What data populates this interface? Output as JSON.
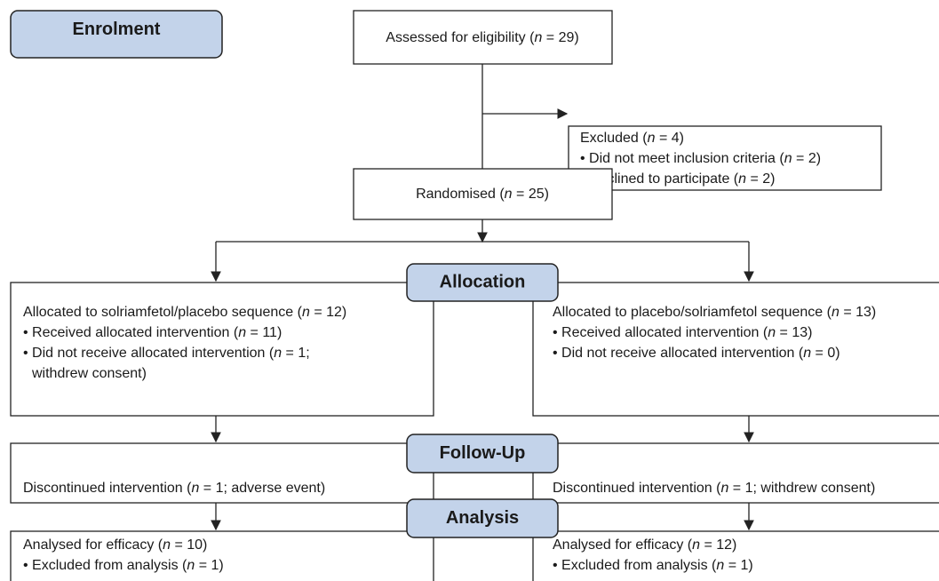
{
  "stages": {
    "enrolment": "Enrolment",
    "allocation": "Allocation",
    "follow_up": "Follow-Up",
    "analysis": "Analysis"
  },
  "boxes": {
    "assessed": {
      "lines": [
        [
          "Assessed for eligibility (",
          "n",
          " = 29)"
        ]
      ]
    },
    "excluded": {
      "lines": [
        [
          "Excluded (",
          "n",
          " = 4)"
        ],
        [
          "• Did not meet inclusion criteria (",
          "n",
          " = 2)"
        ],
        [
          "• Declined to participate (",
          "n",
          " = 2)"
        ]
      ]
    },
    "randomised": {
      "lines": [
        [
          "Randomised (",
          "n",
          " = 25)"
        ]
      ]
    },
    "allocation_left": {
      "lines": [
        [
          "Allocated to solriamfetol/placebo sequence (",
          "n",
          " = 12)"
        ],
        [
          "• Received allocated intervention (",
          "n",
          " = 11)"
        ],
        [
          "• Did not receive allocated intervention (",
          "n",
          " = 1;"
        ],
        [
          "withdrew consent)"
        ]
      ]
    },
    "allocation_right": {
      "lines": [
        [
          "Allocated to placebo/solriamfetol sequence (",
          "n",
          " = 13)"
        ],
        [
          "• Received allocated intervention (",
          "n",
          " = 13)"
        ],
        [
          "• Did not receive allocated intervention (",
          "n",
          " = 0)"
        ]
      ]
    },
    "follow_up_left": {
      "lines": [
        [
          "Discontinued intervention (",
          "n",
          " = 1; adverse event)"
        ]
      ]
    },
    "follow_up_right": {
      "lines": [
        [
          "Discontinued intervention (",
          "n",
          " = 1; withdrew consent)"
        ]
      ]
    },
    "analysis_left": {
      "lines": [
        [
          "Analysed for efficacy (",
          "n",
          " = 10)"
        ],
        [
          "• Excluded from analysis (",
          "n",
          " = 1)"
        ]
      ]
    },
    "analysis_right": {
      "lines": [
        [
          "Analysed for efficacy (",
          "n",
          " = 12)"
        ],
        [
          "• Excluded from analysis (",
          "n",
          " = 1)"
        ]
      ]
    }
  }
}
